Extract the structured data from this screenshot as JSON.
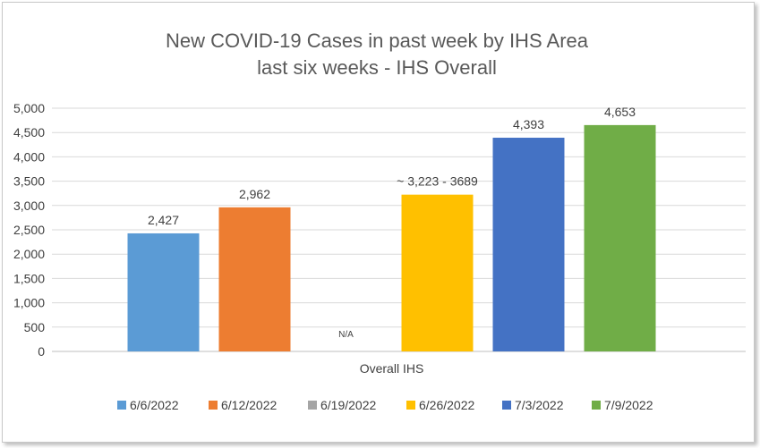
{
  "chart_data": {
    "type": "bar",
    "title": "New COVID-19 Cases in past week by IHS Area",
    "subtitle": "last six weeks - IHS Overall",
    "xlabel": "",
    "ylabel": "",
    "categories": [
      "Overall IHS"
    ],
    "ylim": [
      0,
      5000
    ],
    "yticks": [
      0,
      500,
      1000,
      1500,
      2000,
      2500,
      3000,
      3500,
      4000,
      4500,
      5000
    ],
    "ytick_labels": [
      "0",
      "500",
      "1,000",
      "1,500",
      "2,000",
      "2,500",
      "3,000",
      "3,500",
      "4,000",
      "4,500",
      "5,000"
    ],
    "grid": true,
    "legend_position": "bottom",
    "series": [
      {
        "name": "6/6/2022",
        "values": [
          2427
        ],
        "label": "2,427",
        "color": "#5B9BD5"
      },
      {
        "name": "6/12/2022",
        "values": [
          2962
        ],
        "label": "2,962",
        "color": "#ED7D31"
      },
      {
        "name": "6/19/2022",
        "values": [
          null
        ],
        "label": "N/A",
        "color": "#A5A5A5"
      },
      {
        "name": "6/26/2022",
        "values": [
          3223
        ],
        "label": "~ 3,223 - 3689",
        "color": "#FFC000"
      },
      {
        "name": "7/3/2022",
        "values": [
          4393
        ],
        "label": "4,393",
        "color": "#4472C4"
      },
      {
        "name": "7/9/2022",
        "values": [
          4653
        ],
        "label": "4,653",
        "color": "#70AD47"
      }
    ]
  }
}
